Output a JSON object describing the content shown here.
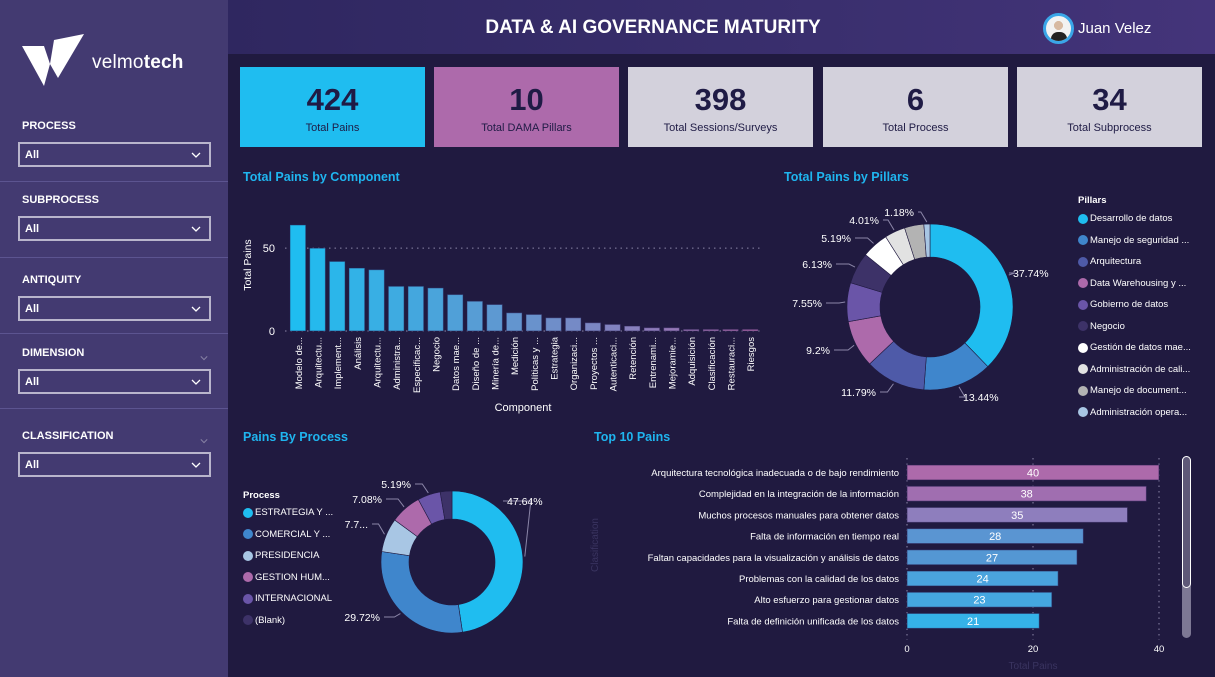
{
  "brand": {
    "name_light": "velmo",
    "name_bold": "tech"
  },
  "header": {
    "title": "DATA & AI GOVERNANCE MATURITY",
    "user_name": "Juan Velez"
  },
  "filters": [
    {
      "label": "PROCESS",
      "value": "All"
    },
    {
      "label": "SUBPROCESS",
      "value": "All"
    },
    {
      "label": "ANTIQUITY",
      "value": "All"
    },
    {
      "label": "DIMENSION",
      "value": "All"
    },
    {
      "label": "CLASSIFICATION",
      "value": "All"
    }
  ],
  "kpis": [
    {
      "value": "424",
      "label": "Total Pains",
      "color": "#1fbdf0"
    },
    {
      "value": "10",
      "label": "Total DAMA Pillars",
      "color": "#ad6aab"
    },
    {
      "value": "398",
      "label": "Total Sessions/Surveys",
      "color": "#d3d1dc"
    },
    {
      "value": "6",
      "label": "Total Process",
      "color": "#d3d1dc"
    },
    {
      "value": "34",
      "label": "Total Subprocess",
      "color": "#d3d1dc"
    }
  ],
  "chart_data": [
    {
      "type": "bar",
      "title": "Total Pains by Component",
      "xlabel": "Component",
      "ylabel": "Total Pains",
      "ylim": [
        0,
        70
      ],
      "yticks": [
        "0",
        "50"
      ],
      "gridlines": [
        50
      ],
      "categories": [
        "Modelo de...",
        "Arquitectu...",
        "Implement...",
        "Análisis",
        "Arquitectu...",
        "Administra...",
        "Especificac...",
        "Negocio",
        "Datos mae...",
        "Diseño de ...",
        "Minería de...",
        "Medición",
        "Políticas y ...",
        "Estrategia",
        "Organizaci...",
        "Proyectos ...",
        "Autenticaci...",
        "Retención",
        "Entrenami...",
        "Mejoramie...",
        "Adquisición",
        "Clasificación",
        "Restauraci...",
        "Riesgos"
      ],
      "values": [
        64,
        50,
        42,
        38,
        37,
        27,
        27,
        26,
        22,
        18,
        16,
        11,
        10,
        8,
        8,
        5,
        4,
        3,
        2,
        2,
        1,
        1,
        1,
        1
      ],
      "color_start": "#1fbdf0",
      "color_end": "#ad6aab"
    },
    {
      "type": "pie",
      "donut": true,
      "title": "Total Pains by Pillars",
      "legend_title": "Pillars",
      "legend_position": "right",
      "labels": [
        "Desarrollo de datos",
        "Manejo de seguridad ...",
        "Arquitectura",
        "Data Warehousing y ...",
        "Gobierno de datos",
        "Negocio",
        "Gestión de datos mae...",
        "Administración de cali...",
        "Manejo de document...",
        "Administración opera..."
      ],
      "values": [
        37.74,
        13.44,
        11.79,
        9.2,
        7.55,
        6.13,
        5.19,
        4.01,
        3.77,
        1.18
      ],
      "data_labels": [
        "37.74%",
        "13.44%",
        "11.79%",
        "9.2%",
        "7.55%",
        "6.13%",
        "5.19%",
        "4.01%",
        "",
        "1.18%"
      ],
      "colors": [
        "#1fbdf0",
        "#3f86cc",
        "#4e5aa8",
        "#ad6aab",
        "#6a55a8",
        "#3d3268",
        "#ffffff",
        "#e2e2e2",
        "#b3b3b3",
        "#a8c6e4"
      ]
    },
    {
      "type": "pie",
      "donut": true,
      "title": "Pains By Process",
      "legend_title": "Process",
      "legend_position": "left",
      "labels": [
        "ESTRATEGIA Y ...",
        "COMERCIAL Y ...",
        "PRESIDENCIA",
        "GESTION HUM...",
        "INTERNACIONAL",
        "(Blank)"
      ],
      "values": [
        47.64,
        29.72,
        7.7,
        7.08,
        5.19,
        2.67
      ],
      "data_labels": [
        "47.64%",
        "29.72%",
        "7.7...",
        "7.08%",
        "5.19%",
        ""
      ],
      "colors": [
        "#1fbdf0",
        "#3f86cc",
        "#a8c6e4",
        "#ad6aab",
        "#6a55a8",
        "#3d3268"
      ]
    },
    {
      "type": "bar",
      "orientation": "horizontal",
      "title": "Top 10 Pains",
      "ylabel": "Clasification",
      "xlabel": "Total Pains",
      "xlim": [
        0,
        40
      ],
      "xticks": [
        "0",
        "20",
        "40"
      ],
      "categories": [
        "Arquitectura tecnológica inadecuada o de bajo rendimiento",
        "Complejidad en la integración de la información",
        "Muchos procesos manuales para obtener datos",
        "Falta de información en tiempo real",
        "Faltan capacidades para la visualización y análisis de datos",
        "Problemas con la calidad de los datos",
        "Alto esfuerzo para gestionar datos",
        "Falta de definición unificada de los datos"
      ],
      "values": [
        40,
        38,
        35,
        28,
        27,
        24,
        23,
        21
      ],
      "colors": [
        "#ad6aab",
        "#a06eb0",
        "#8e7ebd",
        "#5a95d2",
        "#5497d3",
        "#4aa3dd",
        "#45a7e0",
        "#35b2e8"
      ]
    }
  ]
}
